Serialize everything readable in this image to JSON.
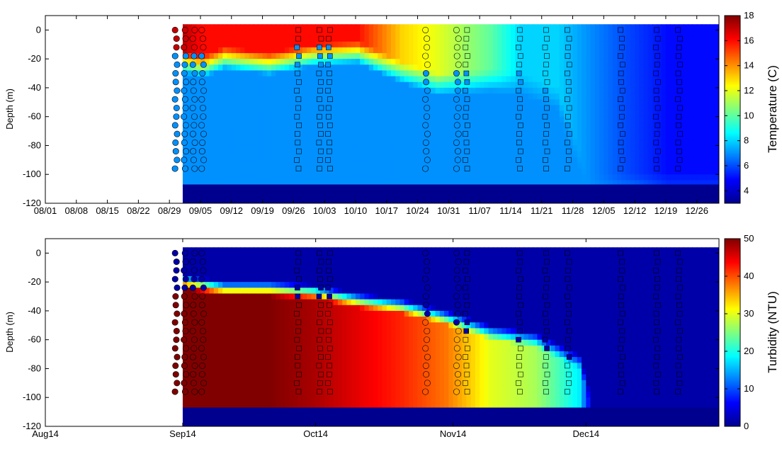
{
  "chart_data": [
    {
      "type": "heatmap",
      "panel": "top",
      "ylabel": "Depth (m)",
      "colorbar_label": "Temperature (C)",
      "colorbar_ticks": [
        "4",
        "6",
        "8",
        "10",
        "12",
        "14",
        "16",
        "18"
      ],
      "clim": [
        3,
        18
      ],
      "ylim": [
        -120,
        10
      ],
      "y_ticks": [
        "0",
        "-20",
        "-40",
        "-60",
        "-80",
        "-100",
        "-120"
      ],
      "x_ticks": [
        "08/01",
        "08/08",
        "08/15",
        "08/22",
        "08/29",
        "09/05",
        "09/12",
        "09/19",
        "09/26",
        "10/03",
        "10/10",
        "10/17",
        "10/24",
        "10/31",
        "11/07",
        "11/14",
        "11/21",
        "11/28",
        "12/05",
        "12/12",
        "12/19",
        "12/26"
      ],
      "bottom_depth": -107,
      "surface_profile": [
        {
          "day": 31,
          "value": 17,
          "mld": -15
        },
        {
          "day": 35,
          "value": 16,
          "mld": -18
        },
        {
          "day": 40,
          "value": 16,
          "mld": -12
        },
        {
          "day": 50,
          "value": 16,
          "mld": -16
        },
        {
          "day": 60,
          "value": 16,
          "mld": -10
        },
        {
          "day": 70,
          "value": 16,
          "mld": -8
        },
        {
          "day": 80,
          "value": 13,
          "mld": -22
        },
        {
          "day": 88,
          "value": 12,
          "mld": -30
        },
        {
          "day": 100,
          "value": 10,
          "mld": -28
        },
        {
          "day": 107,
          "value": 8,
          "mld": -30
        },
        {
          "day": 115,
          "value": 8,
          "mld": -40
        },
        {
          "day": 122,
          "value": 7,
          "mld": -100
        },
        {
          "day": 130,
          "value": 6,
          "mld": -100
        },
        {
          "day": 140,
          "value": 5,
          "mld": -100
        },
        {
          "day": 152,
          "value": 5,
          "mld": -100
        }
      ],
      "deep_value": 7
    },
    {
      "type": "heatmap",
      "panel": "bottom",
      "ylabel": "Depth (m)",
      "colorbar_label": "Turbidity (NTU)",
      "colorbar_ticks": [
        "0",
        "10",
        "20",
        "30",
        "40",
        "50"
      ],
      "clim": [
        0,
        50
      ],
      "ylim": [
        -120,
        10
      ],
      "y_ticks": [
        "0",
        "-20",
        "-40",
        "-60",
        "-80",
        "-100",
        "-120"
      ],
      "x_ticks": [
        "Aug14",
        "Sep14",
        "Oct14",
        "Nov14",
        "Dec14"
      ],
      "bottom_depth": -107,
      "surface_value": 2,
      "turbid_layer": [
        {
          "day": 31,
          "top": -25,
          "value": 50
        },
        {
          "day": 40,
          "top": -30,
          "value": 50
        },
        {
          "day": 50,
          "top": -30,
          "value": 50
        },
        {
          "day": 60,
          "top": -32,
          "value": 48
        },
        {
          "day": 70,
          "top": -38,
          "value": 45
        },
        {
          "day": 80,
          "top": -42,
          "value": 42
        },
        {
          "day": 90,
          "top": -50,
          "value": 38
        },
        {
          "day": 100,
          "top": -60,
          "value": 30
        },
        {
          "day": 110,
          "top": -65,
          "value": 27
        },
        {
          "day": 120,
          "top": -80,
          "value": 18
        },
        {
          "day": 123,
          "top": -110,
          "value": 2
        }
      ]
    }
  ],
  "profile_casts": [
    {
      "day": 29.5,
      "marker": "circle"
    },
    {
      "day": 31.5,
      "marker": "circle"
    },
    {
      "day": 33.5,
      "marker": "circle"
    },
    {
      "day": 35.5,
      "marker": "circle"
    },
    {
      "day": 57,
      "marker": "square"
    },
    {
      "day": 62,
      "marker": "square"
    },
    {
      "day": 64,
      "marker": "square"
    },
    {
      "day": 86,
      "marker": "circle"
    },
    {
      "day": 93,
      "marker": "circle"
    },
    {
      "day": 95,
      "marker": "square"
    },
    {
      "day": 107,
      "marker": "square"
    },
    {
      "day": 113,
      "marker": "square"
    },
    {
      "day": 118,
      "marker": "square"
    },
    {
      "day": 130,
      "marker": "square"
    },
    {
      "day": 138,
      "marker": "square"
    },
    {
      "day": 143,
      "marker": "square"
    }
  ]
}
